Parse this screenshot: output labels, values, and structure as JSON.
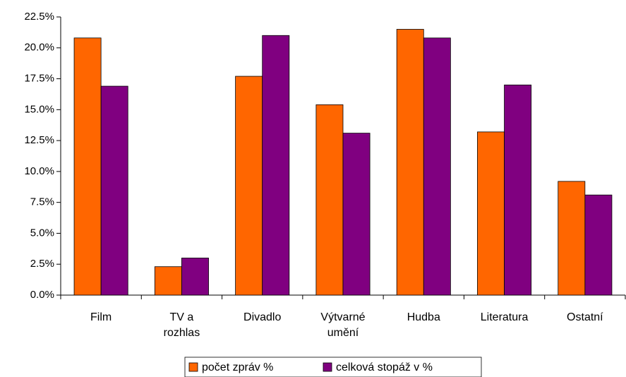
{
  "chart_data": {
    "type": "bar",
    "categories": [
      "Film",
      "TV a rozhlas",
      "Divadlo",
      "Výtvarné umění",
      "Hudba",
      "Literatura",
      "Ostatní"
    ],
    "series": [
      {
        "name": "počet zpráv %",
        "color": "#ff6600",
        "values": [
          20.8,
          2.3,
          17.7,
          15.4,
          21.5,
          13.2,
          9.2
        ]
      },
      {
        "name": "celková stopáž v %",
        "color": "#800080",
        "values": [
          16.9,
          3.0,
          21.0,
          13.1,
          20.8,
          17.0,
          8.1
        ]
      }
    ],
    "ylim": [
      0,
      22.5
    ],
    "yticks": [
      {
        "value": 0,
        "label": "0.0%"
      },
      {
        "value": 2.5,
        "label": "2.5%"
      },
      {
        "value": 5,
        "label": "5.0%"
      },
      {
        "value": 7.5,
        "label": "7.5%"
      },
      {
        "value": 10,
        "label": "10.0%"
      },
      {
        "value": 12.5,
        "label": "12.5%"
      },
      {
        "value": 15,
        "label": "15.0%"
      },
      {
        "value": 17.5,
        "label": "17.5%"
      },
      {
        "value": 20,
        "label": "20.0%"
      },
      {
        "value": 22.5,
        "label": "22.5%"
      }
    ],
    "grid": false,
    "legend": "bottom"
  }
}
